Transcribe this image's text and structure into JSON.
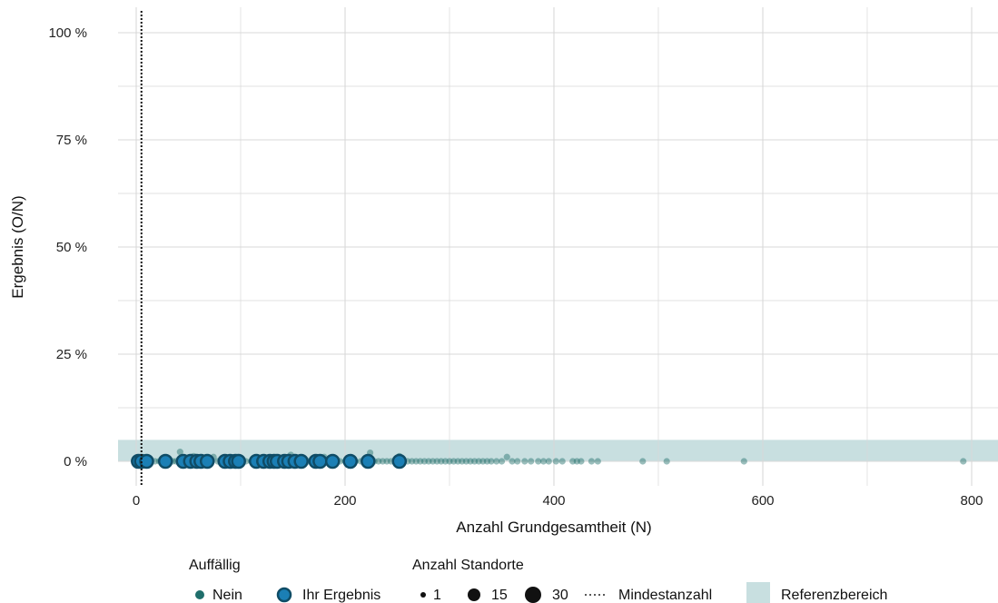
{
  "chart_data": {
    "type": "scatter",
    "title": "",
    "xlabel": "Anzahl Grundgesamtheit (N)",
    "ylabel": "Ergebnis (O/N)",
    "xlim": [
      -20,
      825
    ],
    "ylim": [
      -0.05,
      1.05
    ],
    "x_ticks": [
      0,
      200,
      400,
      600,
      800
    ],
    "y_ticks": [
      0,
      0.25,
      0.5,
      0.75,
      1.0
    ],
    "y_tick_labels": [
      "0 %",
      "25 %",
      "50 %",
      "75 %",
      "100 %"
    ],
    "grid": true,
    "reference_range": [
      0,
      0.05
    ],
    "minimum_count": 5,
    "colors": {
      "nein": "#1f6e6b",
      "ihr_ergebnis": "#1b7fb5",
      "ihr_ergebnis_stroke": "#0f4c66",
      "reference": "#c8dfe0",
      "grid": "#d8d8d8"
    },
    "series": [
      {
        "name": "Nein",
        "points": [
          [
            1,
            0
          ],
          [
            3,
            0
          ],
          [
            6,
            0
          ],
          [
            8,
            0
          ],
          [
            10,
            0
          ],
          [
            14,
            0
          ],
          [
            18,
            0
          ],
          [
            22,
            0
          ],
          [
            30,
            0
          ],
          [
            35,
            0
          ],
          [
            38,
            0
          ],
          [
            42,
            0.022
          ],
          [
            46,
            0
          ],
          [
            50,
            0
          ],
          [
            55,
            0.012
          ],
          [
            60,
            0
          ],
          [
            65,
            0
          ],
          [
            70,
            0
          ],
          [
            74,
            0.01
          ],
          [
            78,
            0
          ],
          [
            82,
            0
          ],
          [
            88,
            0
          ],
          [
            95,
            0
          ],
          [
            100,
            0
          ],
          [
            105,
            0
          ],
          [
            110,
            0
          ],
          [
            115,
            0
          ],
          [
            120,
            0.008
          ],
          [
            125,
            0
          ],
          [
            130,
            0
          ],
          [
            135,
            0
          ],
          [
            140,
            0
          ],
          [
            145,
            0
          ],
          [
            148,
            0.015
          ],
          [
            150,
            0
          ],
          [
            155,
            0
          ],
          [
            160,
            0
          ],
          [
            165,
            0
          ],
          [
            170,
            0
          ],
          [
            175,
            0
          ],
          [
            180,
            0.01
          ],
          [
            185,
            0
          ],
          [
            190,
            0
          ],
          [
            195,
            0
          ],
          [
            200,
            0
          ],
          [
            205,
            0
          ],
          [
            210,
            0
          ],
          [
            215,
            0
          ],
          [
            220,
            0
          ],
          [
            224,
            0.02
          ],
          [
            228,
            0
          ],
          [
            232,
            0
          ],
          [
            236,
            0
          ],
          [
            240,
            0
          ],
          [
            244,
            0
          ],
          [
            248,
            0
          ],
          [
            252,
            0.012
          ],
          [
            256,
            0
          ],
          [
            260,
            0
          ],
          [
            264,
            0
          ],
          [
            268,
            0
          ],
          [
            272,
            0
          ],
          [
            276,
            0
          ],
          [
            280,
            0
          ],
          [
            284,
            0
          ],
          [
            288,
            0
          ],
          [
            292,
            0
          ],
          [
            296,
            0
          ],
          [
            300,
            0
          ],
          [
            304,
            0
          ],
          [
            308,
            0
          ],
          [
            312,
            0
          ],
          [
            316,
            0
          ],
          [
            320,
            0
          ],
          [
            324,
            0
          ],
          [
            328,
            0
          ],
          [
            332,
            0
          ],
          [
            336,
            0
          ],
          [
            340,
            0
          ],
          [
            345,
            0
          ],
          [
            350,
            0
          ],
          [
            355,
            0.01
          ],
          [
            360,
            0
          ],
          [
            365,
            0
          ],
          [
            372,
            0
          ],
          [
            378,
            0
          ],
          [
            385,
            0
          ],
          [
            390,
            0
          ],
          [
            395,
            0
          ],
          [
            402,
            0
          ],
          [
            408,
            0
          ],
          [
            418,
            0
          ],
          [
            422,
            0
          ],
          [
            426,
            0
          ],
          [
            436,
            0
          ],
          [
            442,
            0
          ],
          [
            485,
            0
          ],
          [
            508,
            0
          ],
          [
            582,
            0
          ],
          [
            792,
            0
          ]
        ]
      },
      {
        "name": "Ihr Ergebnis",
        "points": [
          [
            2,
            0
          ],
          [
            5,
            0
          ],
          [
            10,
            0
          ],
          [
            28,
            0
          ],
          [
            45,
            0
          ],
          [
            52,
            0
          ],
          [
            58,
            0
          ],
          [
            62,
            0
          ],
          [
            68,
            0
          ],
          [
            85,
            0
          ],
          [
            90,
            0
          ],
          [
            95,
            0
          ],
          [
            98,
            0
          ],
          [
            115,
            0
          ],
          [
            122,
            0
          ],
          [
            128,
            0
          ],
          [
            132,
            0
          ],
          [
            135,
            0
          ],
          [
            142,
            0
          ],
          [
            146,
            0
          ],
          [
            152,
            0
          ],
          [
            158,
            0
          ],
          [
            172,
            0
          ],
          [
            176,
            0
          ],
          [
            188,
            0
          ],
          [
            205,
            0
          ],
          [
            222,
            0
          ],
          [
            252,
            0
          ]
        ]
      }
    ],
    "legend": {
      "placement": "bottom",
      "group1_title": "Auffällig",
      "item_nein": "Nein",
      "item_ihr": "Ihr Ergebnis",
      "group2_title": "Anzahl Standorte",
      "size_1": "1",
      "size_15": "15",
      "size_30": "30",
      "item_min": "Mindestanzahl",
      "item_ref": "Referenzbereich"
    }
  }
}
